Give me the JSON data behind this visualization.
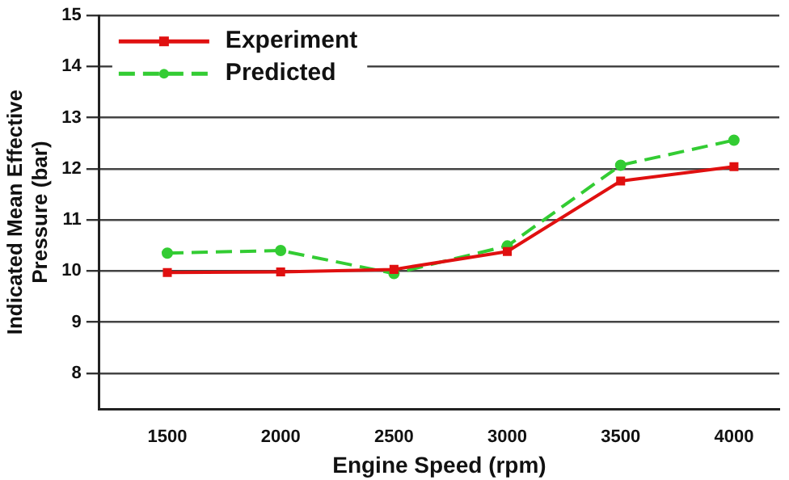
{
  "chart_data": {
    "type": "line",
    "xlabel": "Engine Speed (rpm)",
    "ylabel": "Indicated Mean Effective Pressure (bar)",
    "x": [
      1500,
      2000,
      2500,
      3000,
      3500,
      4000
    ],
    "series": [
      {
        "name": "Experiment",
        "color": "#e01010",
        "marker": "square",
        "line_style": "solid",
        "values": [
          9.97,
          9.98,
          10.03,
          10.38,
          11.76,
          12.04
        ]
      },
      {
        "name": "Predicted",
        "color": "#33cc33",
        "marker": "circle",
        "line_style": "dashed",
        "values": [
          10.35,
          10.4,
          9.95,
          10.49,
          12.07,
          12.56
        ]
      }
    ],
    "xlim": [
      1200,
      4200
    ],
    "xticks": [
      1500,
      2000,
      2500,
      3000,
      3500,
      4000
    ],
    "ylim": [
      7.3,
      15
    ],
    "yticks": [
      8,
      9,
      10,
      11,
      12,
      13,
      14,
      15
    ],
    "grid": "y",
    "legend": "top left"
  }
}
